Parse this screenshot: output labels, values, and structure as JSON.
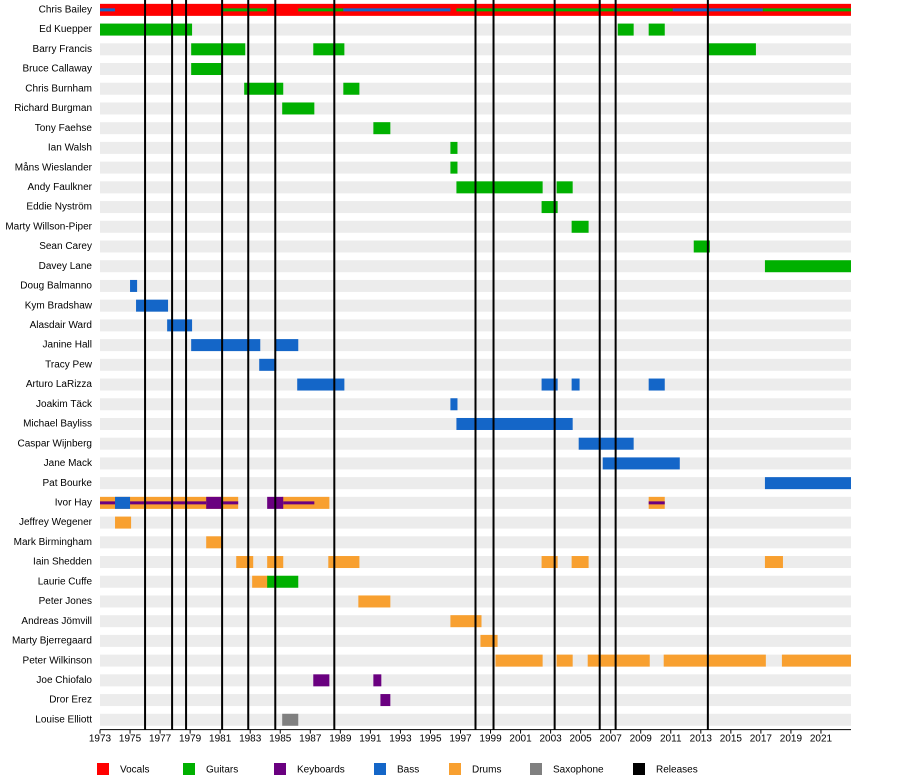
{
  "chart_data": {
    "type": "timeline",
    "xlim": [
      1973,
      2023
    ],
    "xticks": [
      1973,
      1975,
      1977,
      1979,
      1981,
      1983,
      1985,
      1987,
      1989,
      1991,
      1993,
      1995,
      1997,
      1999,
      2001,
      2003,
      2005,
      2007,
      2009,
      2011,
      2013,
      2015,
      2017,
      2019,
      2021
    ],
    "roles": [
      {
        "name": "Vocals",
        "color": "#ff0000"
      },
      {
        "name": "Guitars",
        "color": "#00b000"
      },
      {
        "name": "Keyboards",
        "color": "#6a0080"
      },
      {
        "name": "Bass",
        "color": "#1466c8"
      },
      {
        "name": "Drums",
        "color": "#f8a030"
      },
      {
        "name": "Saxophone",
        "color": "#808080"
      }
    ],
    "releases_label": "Releases",
    "releases_color": "#000000",
    "releases": [
      1976.0,
      1977.8,
      1978.73,
      1981.13,
      1982.87,
      1984.67,
      1988.6,
      1998.0,
      1999.2,
      2003.27,
      2006.27,
      2007.33,
      2013.47
    ],
    "members": [
      {
        "name": "Chris Bailey",
        "bars": [
          {
            "role": "Vocals",
            "start": 1973,
            "end": 2023
          }
        ],
        "secondary": [
          {
            "role": "Bass",
            "start": 1973,
            "end": 1974
          },
          {
            "role": "Guitars",
            "start": 1981.13,
            "end": 1984.13
          },
          {
            "role": "Guitars",
            "start": 1986.2,
            "end": 1989.2
          },
          {
            "role": "Bass",
            "start": 1989.2,
            "end": 1996.33
          },
          {
            "role": "Guitars",
            "start": 1996.73,
            "end": 2011.13
          },
          {
            "role": "Bass",
            "start": 2011.13,
            "end": 2017.13
          },
          {
            "role": "Guitars",
            "start": 2017.13,
            "end": 2023
          }
        ]
      },
      {
        "name": "Ed Kuepper",
        "bars": [
          {
            "role": "Guitars",
            "start": 1973,
            "end": 1979.13
          },
          {
            "role": "Guitars",
            "start": 2007.47,
            "end": 2008.53
          },
          {
            "role": "Guitars",
            "start": 2009.53,
            "end": 2010.6
          }
        ]
      },
      {
        "name": "Barry Francis",
        "bars": [
          {
            "role": "Guitars",
            "start": 1979.07,
            "end": 1982.67
          },
          {
            "role": "Guitars",
            "start": 1987.2,
            "end": 1989.27
          },
          {
            "role": "Guitars",
            "start": 2013.47,
            "end": 2016.67
          }
        ]
      },
      {
        "name": "Bruce Callaway",
        "bars": [
          {
            "role": "Guitars",
            "start": 1979.07,
            "end": 1981.13
          }
        ]
      },
      {
        "name": "Chris Burnham",
        "bars": [
          {
            "role": "Guitars",
            "start": 1982.6,
            "end": 1985.2
          },
          {
            "role": "Guitars",
            "start": 1989.2,
            "end": 1990.27
          }
        ]
      },
      {
        "name": "Richard Burgman",
        "bars": [
          {
            "role": "Guitars",
            "start": 1985.13,
            "end": 1987.27
          }
        ]
      },
      {
        "name": "Tony Faehse",
        "bars": [
          {
            "role": "Guitars",
            "start": 1991.2,
            "end": 1992.33
          }
        ]
      },
      {
        "name": "Ian Walsh",
        "bars": [
          {
            "role": "Guitars",
            "start": 1996.33,
            "end": 1996.8
          }
        ]
      },
      {
        "name": "Måns Wieslander",
        "bars": [
          {
            "role": "Guitars",
            "start": 1996.33,
            "end": 1996.8
          }
        ]
      },
      {
        "name": "Andy Faulkner",
        "bars": [
          {
            "role": "Guitars",
            "start": 1996.73,
            "end": 2002.47
          },
          {
            "role": "Guitars",
            "start": 2003.4,
            "end": 2004.47
          }
        ]
      },
      {
        "name": "Eddie Nyström",
        "bars": [
          {
            "role": "Guitars",
            "start": 2002.4,
            "end": 2003.47
          }
        ]
      },
      {
        "name": "Marty Willson-Piper",
        "bars": [
          {
            "role": "Guitars",
            "start": 2004.4,
            "end": 2005.53
          }
        ]
      },
      {
        "name": "Sean Carey",
        "bars": [
          {
            "role": "Guitars",
            "start": 2012.53,
            "end": 2013.6
          }
        ]
      },
      {
        "name": "Davey Lane",
        "bars": [
          {
            "role": "Guitars",
            "start": 2017.27,
            "end": 2023
          }
        ]
      },
      {
        "name": "Doug Balmanno",
        "bars": [
          {
            "role": "Bass",
            "start": 1975,
            "end": 1975.47
          }
        ]
      },
      {
        "name": "Kym Bradshaw",
        "bars": [
          {
            "role": "Bass",
            "start": 1975.4,
            "end": 1977.53
          }
        ]
      },
      {
        "name": "Alasdair Ward",
        "bars": [
          {
            "role": "Bass",
            "start": 1977.47,
            "end": 1979.13
          }
        ]
      },
      {
        "name": "Janine Hall",
        "bars": [
          {
            "role": "Bass",
            "start": 1979.07,
            "end": 1983.67
          },
          {
            "role": "Bass",
            "start": 1984.67,
            "end": 1986.2
          }
        ]
      },
      {
        "name": "Tracy Pew",
        "bars": [
          {
            "role": "Bass",
            "start": 1983.6,
            "end": 1984.73
          }
        ]
      },
      {
        "name": "Arturo LaRizza",
        "bars": [
          {
            "role": "Bass",
            "start": 1986.13,
            "end": 1989.27
          },
          {
            "role": "Bass",
            "start": 2002.4,
            "end": 2003.47
          },
          {
            "role": "Bass",
            "start": 2004.4,
            "end": 2004.93
          },
          {
            "role": "Bass",
            "start": 2009.53,
            "end": 2010.6
          }
        ]
      },
      {
        "name": "Joakim Täck",
        "bars": [
          {
            "role": "Bass",
            "start": 1996.33,
            "end": 1996.8
          }
        ]
      },
      {
        "name": "Michael Bayliss",
        "bars": [
          {
            "role": "Bass",
            "start": 1996.73,
            "end": 2004.47
          }
        ]
      },
      {
        "name": "Caspar Wijnberg",
        "bars": [
          {
            "role": "Bass",
            "start": 2004.87,
            "end": 2008.53
          }
        ]
      },
      {
        "name": "Jane Mack",
        "bars": [
          {
            "role": "Bass",
            "start": 2006.47,
            "end": 2011.6
          }
        ]
      },
      {
        "name": "Pat Bourke",
        "bars": [
          {
            "role": "Bass",
            "start": 2017.27,
            "end": 2023
          }
        ]
      },
      {
        "name": "Ivor Hay",
        "bars": [
          {
            "role": "Drums",
            "start": 1973,
            "end": 1982.2
          },
          {
            "role": "Drums",
            "start": 1985.13,
            "end": 1988.27
          },
          {
            "role": "Drums",
            "start": 2009.53,
            "end": 2010.6
          },
          {
            "role": "Bass",
            "start": 1974,
            "end": 1975
          },
          {
            "role": "Keyboards",
            "start": 1980.07,
            "end": 1981.07
          },
          {
            "role": "Keyboards",
            "start": 1984.13,
            "end": 1985.2
          }
        ],
        "secondary": [
          {
            "role": "Keyboards",
            "start": 1973,
            "end": 1974
          },
          {
            "role": "Keyboards",
            "start": 1975,
            "end": 1980.07
          },
          {
            "role": "Keyboards",
            "start": 1981.07,
            "end": 1982.2
          },
          {
            "role": "Keyboards",
            "start": 1985.2,
            "end": 1987.27
          },
          {
            "role": "Keyboards",
            "start": 2009.53,
            "end": 2010.6
          }
        ]
      },
      {
        "name": "Jeffrey Wegener",
        "bars": [
          {
            "role": "Drums",
            "start": 1974,
            "end": 1975.07
          }
        ]
      },
      {
        "name": "Mark Birmingham",
        "bars": [
          {
            "role": "Drums",
            "start": 1980.07,
            "end": 1981.13
          }
        ]
      },
      {
        "name": "Iain Shedden",
        "bars": [
          {
            "role": "Drums",
            "start": 1982.07,
            "end": 1983.2
          },
          {
            "role": "Drums",
            "start": 1984.13,
            "end": 1985.2
          },
          {
            "role": "Drums",
            "start": 1988.2,
            "end": 1990.27
          },
          {
            "role": "Drums",
            "start": 2002.4,
            "end": 2003.47
          },
          {
            "role": "Drums",
            "start": 2004.4,
            "end": 2005.53
          },
          {
            "role": "Drums",
            "start": 2017.27,
            "end": 2018.47
          }
        ]
      },
      {
        "name": "Laurie Cuffe",
        "bars": [
          {
            "role": "Drums",
            "start": 1983.13,
            "end": 1984.2
          },
          {
            "role": "Guitars",
            "start": 1984.13,
            "end": 1986.2
          }
        ]
      },
      {
        "name": "Peter Jones",
        "bars": [
          {
            "role": "Drums",
            "start": 1990.2,
            "end": 1992.33
          }
        ]
      },
      {
        "name": "Andreas Jömvill",
        "bars": [
          {
            "role": "Drums",
            "start": 1996.33,
            "end": 1998.4
          }
        ]
      },
      {
        "name": "Marty Bjerregaard",
        "bars": [
          {
            "role": "Drums",
            "start": 1998.33,
            "end": 1999.47
          }
        ]
      },
      {
        "name": "Peter Wilkinson",
        "bars": [
          {
            "role": "Drums",
            "start": 1999.33,
            "end": 2002.47
          },
          {
            "role": "Drums",
            "start": 2003.4,
            "end": 2004.47
          },
          {
            "role": "Drums",
            "start": 2005.47,
            "end": 2009.6
          },
          {
            "role": "Drums",
            "start": 2010.53,
            "end": 2017.33
          },
          {
            "role": "Drums",
            "start": 2018.4,
            "end": 2023
          }
        ]
      },
      {
        "name": "Joe Chiofalo",
        "bars": [
          {
            "role": "Keyboards",
            "start": 1987.2,
            "end": 1988.27
          },
          {
            "role": "Keyboards",
            "start": 1991.2,
            "end": 1991.73
          }
        ]
      },
      {
        "name": "Dror Erez",
        "bars": [
          {
            "role": "Keyboards",
            "start": 1991.67,
            "end": 1992.33
          }
        ]
      },
      {
        "name": "Louise Elliott",
        "bars": [
          {
            "role": "Saxophone",
            "start": 1985.13,
            "end": 1986.2
          }
        ]
      }
    ]
  }
}
